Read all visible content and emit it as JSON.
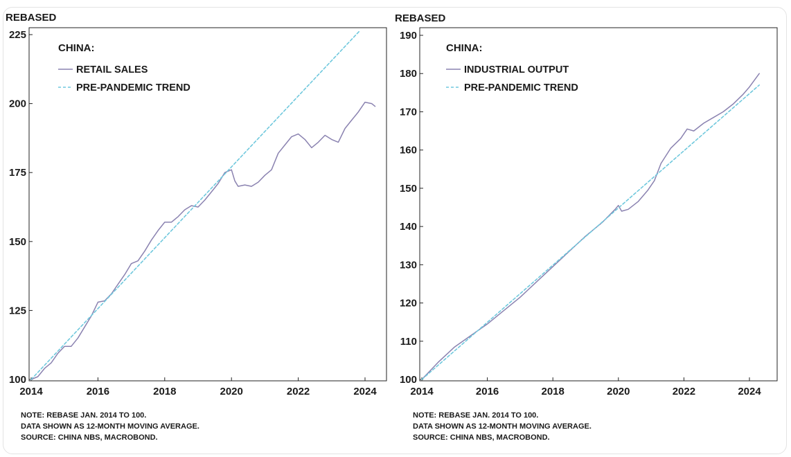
{
  "chart_data": [
    {
      "type": "line",
      "ylabel": "REBASED",
      "ylim": [
        100,
        225
      ],
      "yticks": [
        100,
        125,
        150,
        175,
        200,
        225
      ],
      "xlim": [
        2014,
        2024.7
      ],
      "xticks": [
        2014,
        2016,
        2018,
        2020,
        2022,
        2024
      ],
      "legend_title": "CHINA:",
      "legend_position": "top-left",
      "grid": false,
      "series": [
        {
          "name": "RETAIL SALES",
          "color": "#8a82b0",
          "style": "solid",
          "x": [
            2014.0,
            2014.2,
            2014.4,
            2014.6,
            2014.8,
            2015.0,
            2015.2,
            2015.4,
            2015.6,
            2015.8,
            2016.0,
            2016.2,
            2016.4,
            2016.6,
            2016.8,
            2017.0,
            2017.2,
            2017.4,
            2017.6,
            2017.8,
            2018.0,
            2018.2,
            2018.4,
            2018.6,
            2018.8,
            2019.0,
            2019.2,
            2019.4,
            2019.6,
            2019.8,
            2020.0,
            2020.1,
            2020.2,
            2020.4,
            2020.6,
            2020.8,
            2021.0,
            2021.2,
            2021.4,
            2021.6,
            2021.8,
            2022.0,
            2022.2,
            2022.4,
            2022.6,
            2022.8,
            2023.0,
            2023.2,
            2023.4,
            2023.6,
            2023.8,
            2024.0,
            2024.2,
            2024.3
          ],
          "values": [
            100.0,
            101.0,
            104.0,
            106.0,
            109.5,
            112.0,
            112.0,
            115.0,
            119.0,
            123.0,
            128.0,
            128.5,
            131.0,
            134.5,
            138.0,
            142.0,
            143.0,
            146.5,
            150.5,
            154.0,
            157.0,
            157.0,
            159.0,
            161.5,
            163.0,
            162.5,
            165.0,
            168.0,
            171.0,
            175.0,
            176.0,
            172.0,
            170.0,
            170.5,
            170.0,
            171.5,
            174.0,
            176.0,
            182.0,
            185.0,
            188.0,
            189.0,
            187.0,
            184.0,
            186.0,
            188.5,
            187.0,
            186.0,
            191.0,
            194.0,
            197.0,
            200.5,
            200.0,
            199.0
          ]
        },
        {
          "name": "PRE-PANDEMIC TREND",
          "color": "#6fc8dd",
          "style": "dashed",
          "x": [
            2014.0,
            2023.85
          ],
          "values": [
            100.0,
            226.5
          ]
        }
      ]
    },
    {
      "type": "line",
      "ylabel": "REBASED",
      "ylim": [
        100,
        190
      ],
      "yticks": [
        100,
        110,
        120,
        130,
        140,
        150,
        160,
        170,
        180,
        190
      ],
      "xlim": [
        2014,
        2024.7
      ],
      "xticks": [
        2014,
        2016,
        2018,
        2020,
        2022,
        2024
      ],
      "legend_title": "CHINA:",
      "legend_position": "top-left",
      "grid": false,
      "series": [
        {
          "name": "INDUSTRIAL OUTPUT",
          "color": "#8a82b0",
          "style": "solid",
          "x": [
            2014.0,
            2014.5,
            2015.0,
            2015.5,
            2016.0,
            2016.5,
            2017.0,
            2017.5,
            2018.0,
            2018.5,
            2019.0,
            2019.5,
            2019.9,
            2020.0,
            2020.1,
            2020.3,
            2020.6,
            2020.9,
            2021.1,
            2021.3,
            2021.6,
            2021.9,
            2022.1,
            2022.3,
            2022.6,
            2022.9,
            2023.2,
            2023.5,
            2023.8,
            2024.0,
            2024.3
          ],
          "values": [
            100.0,
            104.5,
            108.5,
            111.5,
            114.5,
            118.0,
            121.5,
            125.5,
            129.5,
            133.5,
            137.5,
            141.0,
            144.5,
            145.5,
            144.0,
            144.5,
            146.5,
            149.5,
            152.0,
            156.5,
            160.5,
            163.0,
            165.5,
            165.0,
            167.0,
            168.5,
            170.0,
            172.0,
            174.5,
            176.5,
            180.0
          ]
        },
        {
          "name": "PRE-PANDEMIC TREND",
          "color": "#6fc8dd",
          "style": "dashed",
          "x": [
            2014.0,
            2024.3
          ],
          "values": [
            100.0,
            177.0
          ]
        }
      ]
    }
  ],
  "notes": {
    "left": [
      "NOTE: REBASE JAN. 2014 TO 100.",
      "DATA SHOWN AS 12-MONTH MOVING AVERAGE.",
      "SOURCE: CHINA NBS, MACROBOND."
    ],
    "right": [
      "NOTE: REBASE JAN. 2014 TO 100.",
      "DATA SHOWN AS 12-MONTH MOVING AVERAGE.",
      "SOURCE: CHINA NBS, MACROBOND."
    ]
  }
}
